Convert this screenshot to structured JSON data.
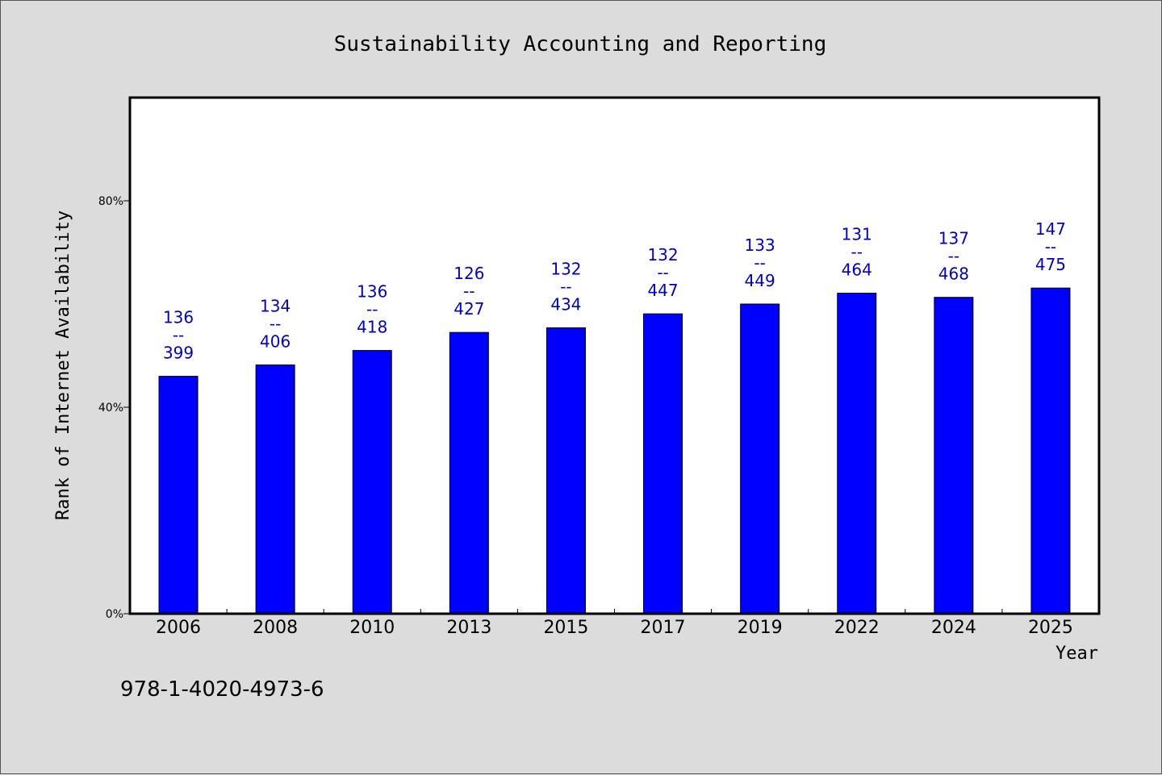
{
  "chart_data": {
    "type": "bar",
    "title": "Sustainability Accounting and Reporting",
    "xlabel": "Year",
    "ylabel": "Rank of Internet Availability",
    "ylim": [
      0,
      100
    ],
    "yticks": [
      0,
      40,
      80
    ],
    "ytick_labels": [
      "0%",
      "40%",
      "80%"
    ],
    "categories": [
      "2006",
      "2008",
      "2010",
      "2013",
      "2015",
      "2017",
      "2019",
      "2022",
      "2024",
      "2025"
    ],
    "values": [
      46,
      48.2,
      51,
      54.5,
      55.4,
      58.1,
      60,
      62.1,
      61.3,
      63.1
    ],
    "label_top": [
      "136",
      "134",
      "136",
      "126",
      "132",
      "132",
      "133",
      "131",
      "137",
      "147"
    ],
    "label_sep": "--",
    "label_bottom": [
      "399",
      "406",
      "418",
      "427",
      "434",
      "447",
      "449",
      "464",
      "468",
      "475"
    ],
    "bar_color": "#0000ff",
    "label_color": "#0000cc",
    "grid": false
  },
  "footer": {
    "isbn": "978-1-4020-4973-6"
  }
}
